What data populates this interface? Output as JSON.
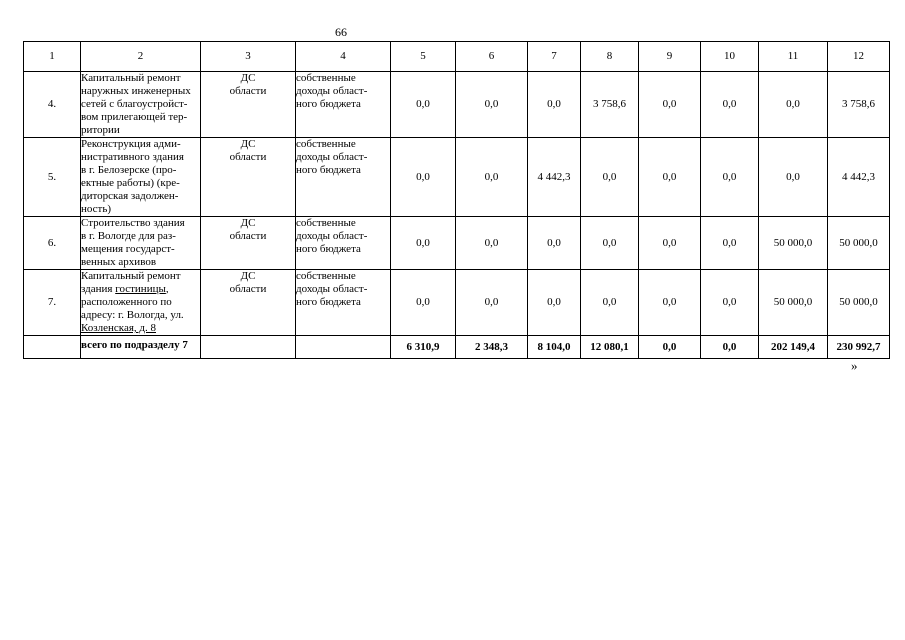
{
  "page": {
    "number": "66",
    "closing_mark": "»"
  },
  "table": {
    "column_headers": [
      "1",
      "2",
      "3",
      "4",
      "5",
      "6",
      "7",
      "8",
      "9",
      "10",
      "11",
      "12"
    ],
    "rows": [
      {
        "num": "4.",
        "name": "Капитальный ремонт\nнаружных инженерных\nсетей с благоустройст-\nвом прилегающей тер-\nритории",
        "executor": "ДС\nобласти",
        "funding_source": "собственные\nдоходы област-\nного бюджета",
        "values": [
          "0,0",
          "0,0",
          "0,0",
          "3 758,6",
          "0,0",
          "0,0",
          "0,0",
          "3 758,6"
        ]
      },
      {
        "num": "5.",
        "name": "Реконструкция адми-\nнистративного здания\nв г. Белозерске (про-\nектные работы) (кре-\nдиторская задолжен-\nность)",
        "executor": "ДС\nобласти",
        "funding_source": "собственные\nдоходы област-\nного бюджета",
        "values": [
          "0,0",
          "0,0",
          "4 442,3",
          "0,0",
          "0,0",
          "0,0",
          "0,0",
          "4 442,3"
        ]
      },
      {
        "num": "6.",
        "name": "Строительство здания\nв г. Вологде для раз-\nмещения государст-\nвенных архивов",
        "executor": "ДС\nобласти",
        "funding_source": "собственные\nдоходы област-\nного бюджета",
        "values": [
          "0,0",
          "0,0",
          "0,0",
          "0,0",
          "0,0",
          "0,0",
          "50 000,0",
          "50 000,0"
        ]
      },
      {
        "num": "7.",
        "name": "Капитальный ремонт\nздания <u>гостиницы</u>,\nрасположенного по\nадресу: г. Вологда, ул.\n<u>Козленская, д. 8</u>",
        "executor": "ДС\nобласти",
        "funding_source": "собственные\nдоходы област-\nного бюджета",
        "values": [
          "0,0",
          "0,0",
          "0,0",
          "0,0",
          "0,0",
          "0,0",
          "50 000,0",
          "50 000,0"
        ]
      }
    ],
    "total_row": {
      "label": "всего по подразделу 7",
      "values": [
        "6 310,9",
        "2 348,3",
        "8 104,0",
        "12 080,1",
        "0,0",
        "0,0",
        "202 149,4",
        "230 992,7"
      ]
    }
  }
}
